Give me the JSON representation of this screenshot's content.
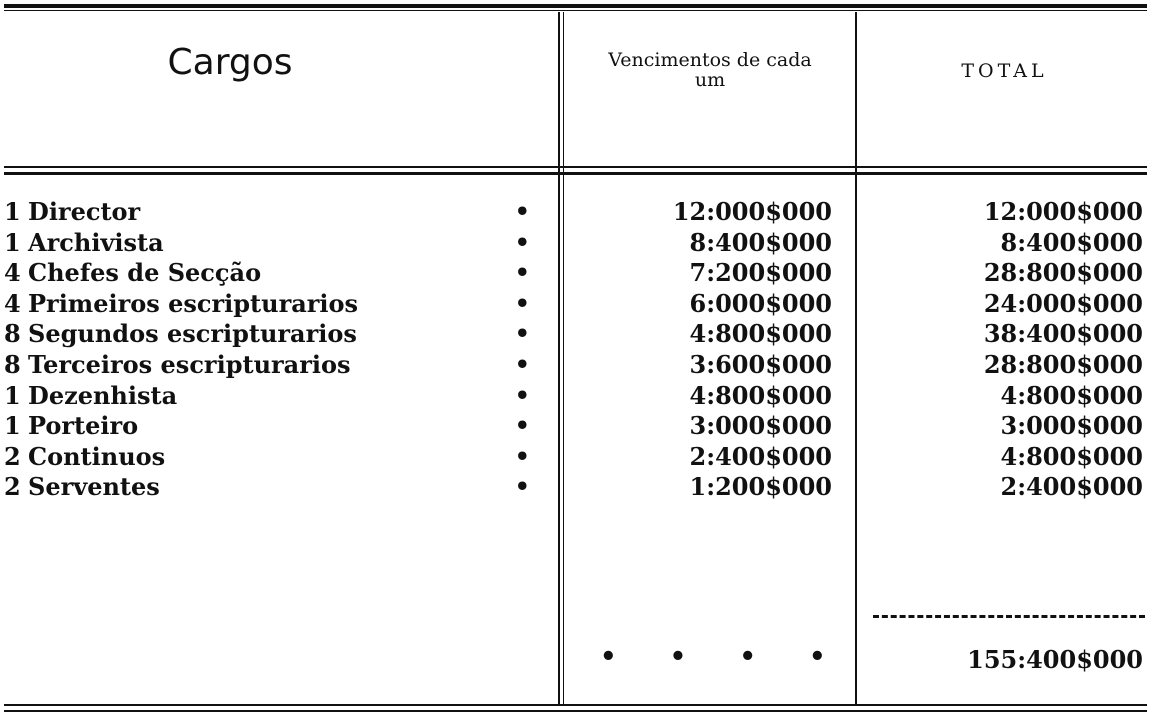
{
  "header": {
    "col1": "Cargos",
    "col2": "Vencimentos de cada um",
    "col3": "TOTAL"
  },
  "rows": [
    {
      "qty": "1",
      "cargo": "Director",
      "vencimento": "12:000$000",
      "total": "12:000$000"
    },
    {
      "qty": "1",
      "cargo": "Archivista",
      "vencimento": "8:400$000",
      "total": "8:400$000"
    },
    {
      "qty": "4",
      "cargo": "Chefes de Secção",
      "vencimento": "7:200$000",
      "total": "28:800$000"
    },
    {
      "qty": "4",
      "cargo": "Primeiros escripturarios",
      "vencimento": "6:000$000",
      "total": "24:000$000"
    },
    {
      "qty": "8",
      "cargo": "Segundos escripturarios",
      "vencimento": "4:800$000",
      "total": "38:400$000"
    },
    {
      "qty": "8",
      "cargo": "Terceiros escripturarios",
      "vencimento": "3:600$000",
      "total": "28:800$000"
    },
    {
      "qty": "1",
      "cargo": "Dezenhista",
      "vencimento": "4:800$000",
      "total": "4:800$000"
    },
    {
      "qty": "1",
      "cargo": "Porteiro",
      "vencimento": "3:000$000",
      "total": "3:000$000"
    },
    {
      "qty": "2",
      "cargo": "Continuos",
      "vencimento": "2:400$000",
      "total": "4:800$000"
    },
    {
      "qty": "2",
      "cargo": "Serventes",
      "vencimento": "1:200$000",
      "total": "2:400$000"
    }
  ],
  "footer": {
    "total": "155:400$000"
  }
}
